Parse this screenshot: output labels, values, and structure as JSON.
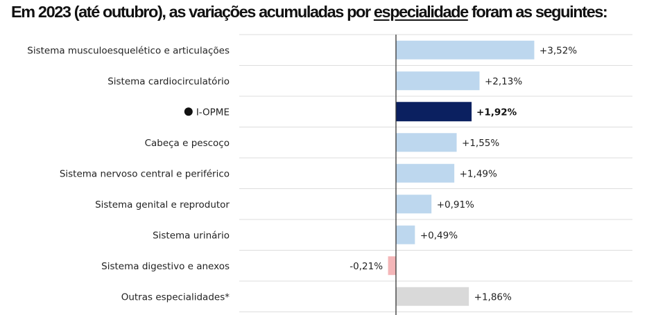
{
  "title": {
    "before": "Em 2023 (até outubro), as variações acumuladas por ",
    "underlined": "especialidade",
    "after": " foram as seguintes:"
  },
  "colors": {
    "bar_default": "#bdd7ee",
    "bar_highlight": "#0b2060",
    "bar_negative": "#f4b6b8",
    "bar_other": "#d9d9d9",
    "axis": "#333333",
    "gridline": "#dddddd"
  },
  "chart_data": {
    "type": "bar",
    "orientation": "horizontal",
    "categories": [
      "Sistema musculoesquelético e articulações",
      "Sistema cardiocirculatório",
      "I-OPME",
      "Cabeça e pescoço",
      "Sistema nervoso central e periférico",
      "Sistema genital e reprodutor",
      "Sistema urinário",
      "Sistema digestivo e anexos",
      "Outras especialidades*"
    ],
    "values": [
      3.52,
      2.13,
      1.92,
      1.55,
      1.49,
      0.91,
      0.49,
      -0.21,
      1.86
    ],
    "value_labels": [
      "+3,52%",
      "+2,13%",
      "+1,92%",
      "+1,55%",
      "+1,49%",
      "+0,91%",
      "+0,49%",
      "-0,21%",
      "+1,86%"
    ],
    "bar_style": [
      "default",
      "default",
      "highlight",
      "default",
      "default",
      "default",
      "default",
      "negative",
      "other"
    ],
    "highlight_marker": "●",
    "xlim": [
      -0.4,
      5.0
    ],
    "grid": true
  }
}
